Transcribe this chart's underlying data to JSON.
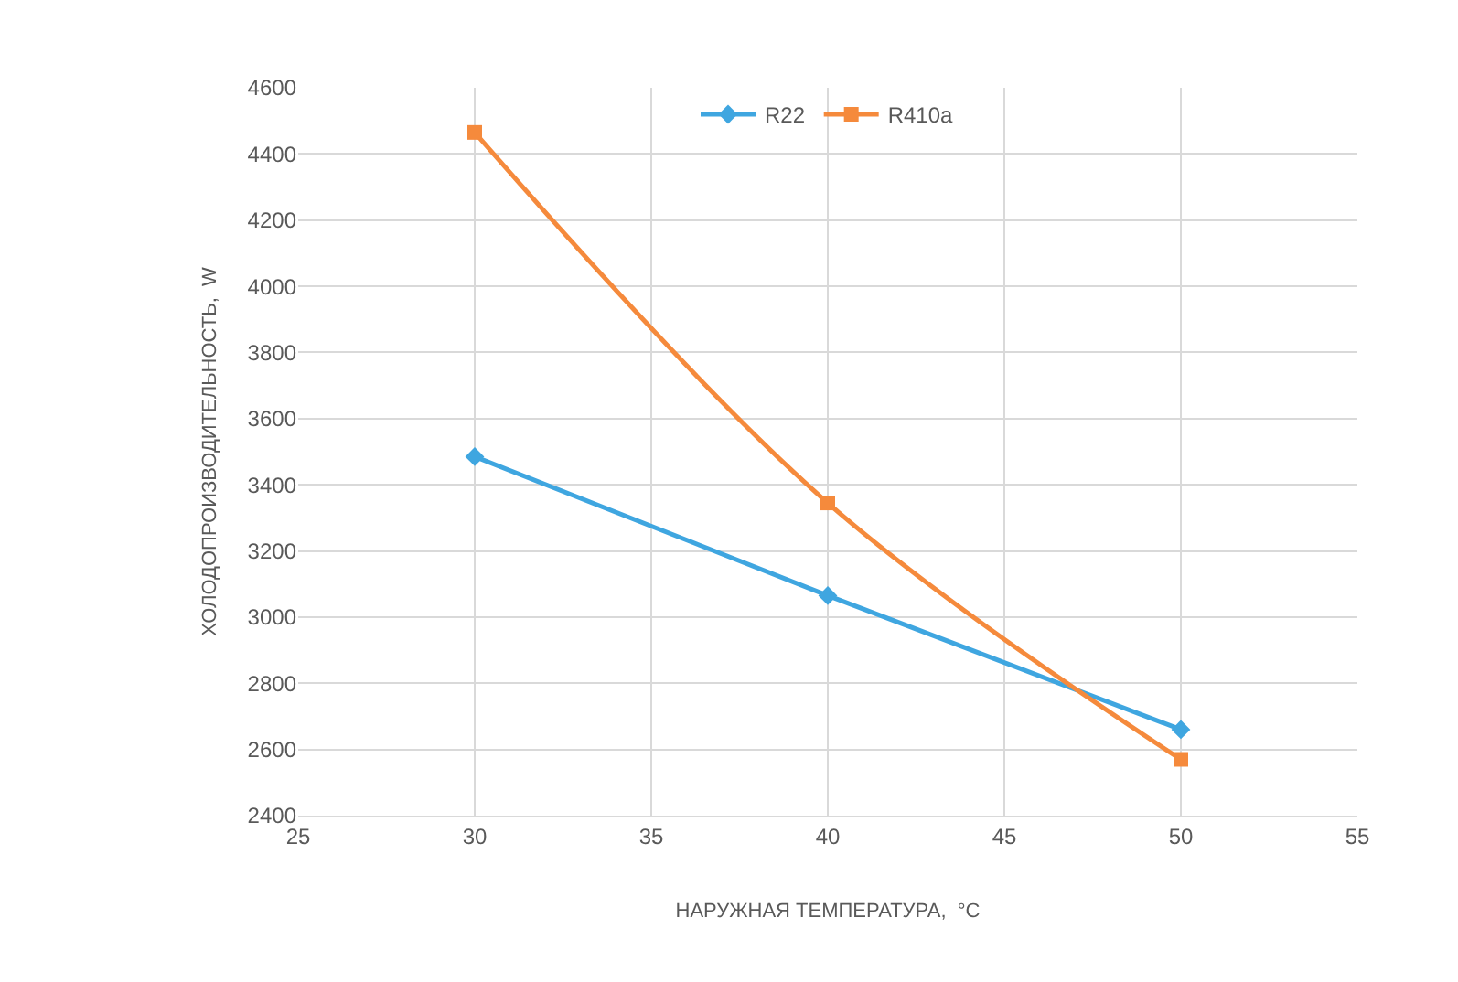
{
  "chart_data": {
    "type": "line",
    "xlabel": "НАРУЖНАЯ ТЕМПЕРАТУРА,  °C",
    "ylabel": "ХОЛОДОПРОИЗВОДИТЕЛЬНОСТЬ,  W",
    "x": [
      30,
      40,
      50
    ],
    "series": [
      {
        "name": "R22",
        "color": "#3fa6e0",
        "marker": "diamond",
        "values": [
          3485,
          3065,
          2660
        ]
      },
      {
        "name": "R410a",
        "color": "#f58a3c",
        "marker": "square",
        "values": [
          4465,
          3345,
          2570
        ]
      }
    ],
    "xlim": [
      25,
      55
    ],
    "xticks": [
      25,
      30,
      35,
      40,
      45,
      50,
      55
    ],
    "ylim": [
      2400,
      4600
    ],
    "yticks": [
      2400,
      2600,
      2800,
      3000,
      3200,
      3400,
      3600,
      3800,
      4000,
      4200,
      4400,
      4600
    ],
    "grid": true,
    "legend": "top",
    "line_style": "solid"
  }
}
